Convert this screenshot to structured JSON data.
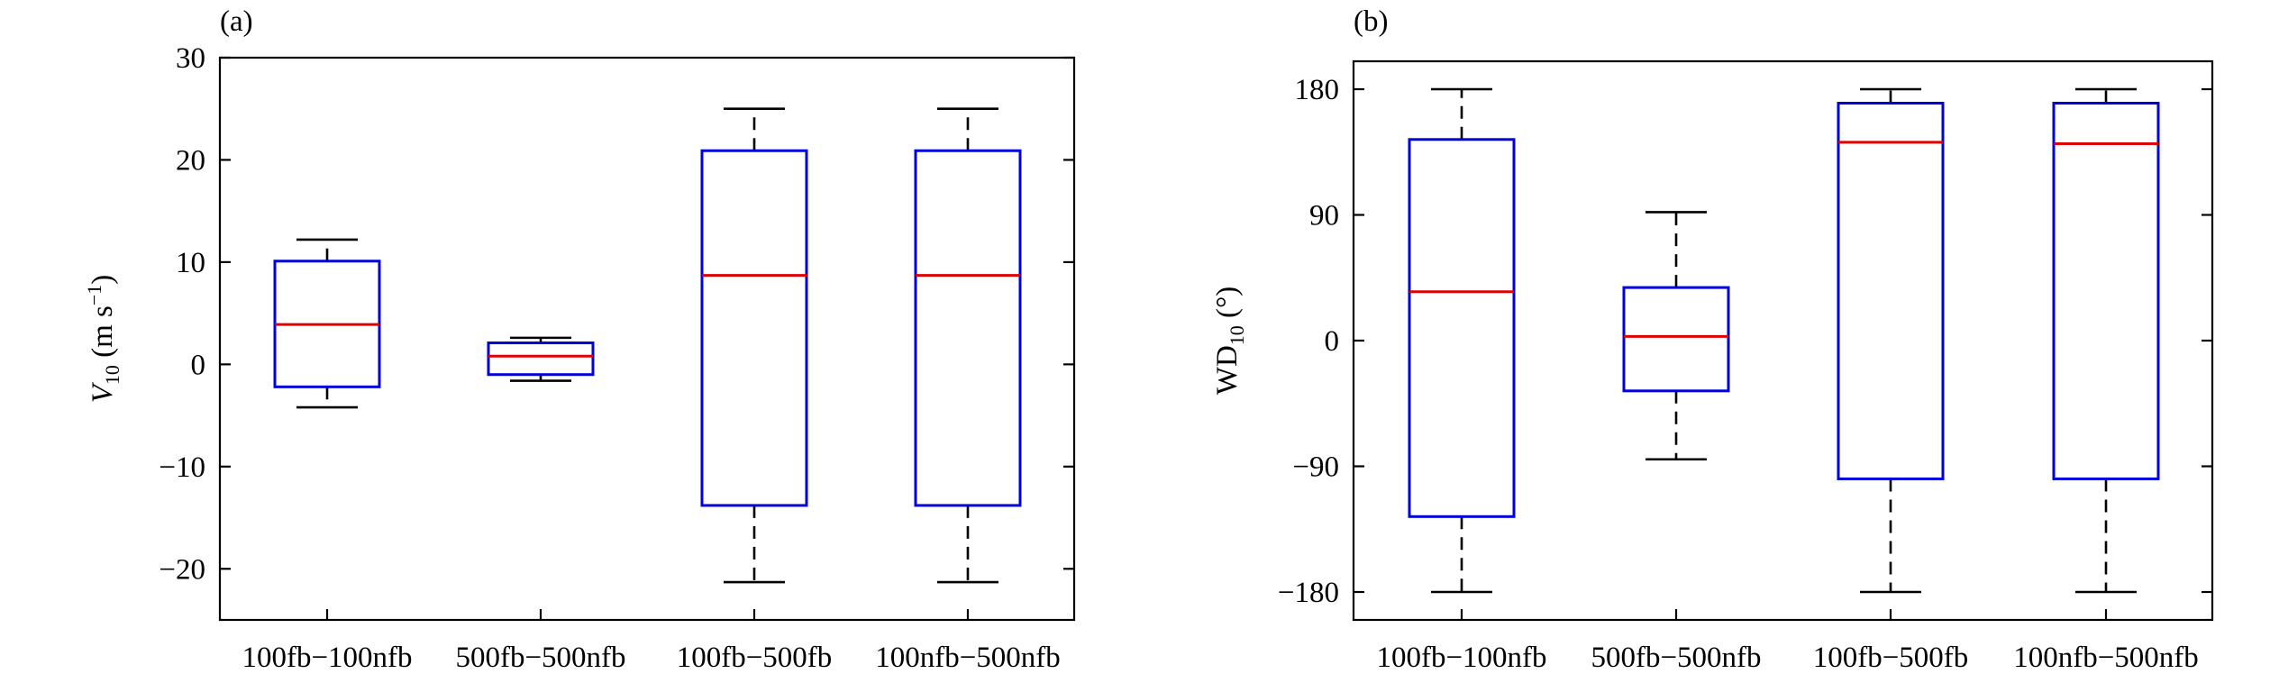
{
  "chart_data": [
    {
      "type": "box",
      "panel_label": "(a)",
      "ylabel": {
        "main": "V",
        "sub": "10",
        "unit_open": " (m s",
        "unit_sup": "−1",
        "unit_close": ")"
      },
      "ylim": [
        -25,
        30
      ],
      "yticks": [
        -20,
        -10,
        0,
        10,
        20,
        30
      ],
      "ytick_labels": [
        "−20",
        "−10",
        "0",
        "10",
        "20",
        "30"
      ],
      "categories": [
        "100fb−100nfb",
        "500fb−500nfb",
        "100fb−500fb",
        "100nfb−500nfb"
      ],
      "boxes": [
        {
          "whisker_low": -4.2,
          "q1": -2.2,
          "median": 3.9,
          "q3": 10.1,
          "whisker_high": 12.2
        },
        {
          "whisker_low": -1.6,
          "q1": -1.0,
          "median": 0.8,
          "q3": 2.1,
          "whisker_high": 2.6
        },
        {
          "whisker_low": -21.3,
          "q1": -13.8,
          "median": 8.7,
          "q3": 20.9,
          "whisker_high": 25.0
        },
        {
          "whisker_low": -21.3,
          "q1": -13.8,
          "median": 8.7,
          "q3": 20.9,
          "whisker_high": 25.0
        }
      ],
      "colors": {
        "box": "#0000dd",
        "median": "#e00000",
        "whisker": "#000000"
      }
    },
    {
      "type": "box",
      "panel_label": "(b)",
      "ylabel": {
        "main": "WD",
        "sub": "10",
        "unit_open": " (°)",
        "unit_sup": "",
        "unit_close": ""
      },
      "ylim": [
        -200,
        200
      ],
      "yticks": [
        -180,
        -90,
        0,
        90,
        180
      ],
      "ytick_labels": [
        "−180",
        "−90",
        "0",
        "90",
        "180"
      ],
      "categories": [
        "100fb−100nfb",
        "500fb−500nfb",
        "100fb−500fb",
        "100nfb−500nfb"
      ],
      "boxes": [
        {
          "whisker_low": -180,
          "q1": -126,
          "median": 35,
          "q3": 144,
          "whisker_high": 180
        },
        {
          "whisker_low": -85,
          "q1": -36,
          "median": 3,
          "q3": 38,
          "whisker_high": 92
        },
        {
          "whisker_low": -180,
          "q1": -99,
          "median": 142,
          "q3": 170,
          "whisker_high": 180
        },
        {
          "whisker_low": -180,
          "q1": -99,
          "median": 141,
          "q3": 170,
          "whisker_high": 180
        }
      ],
      "colors": {
        "box": "#0000dd",
        "median": "#e00000",
        "whisker": "#000000"
      }
    }
  ]
}
